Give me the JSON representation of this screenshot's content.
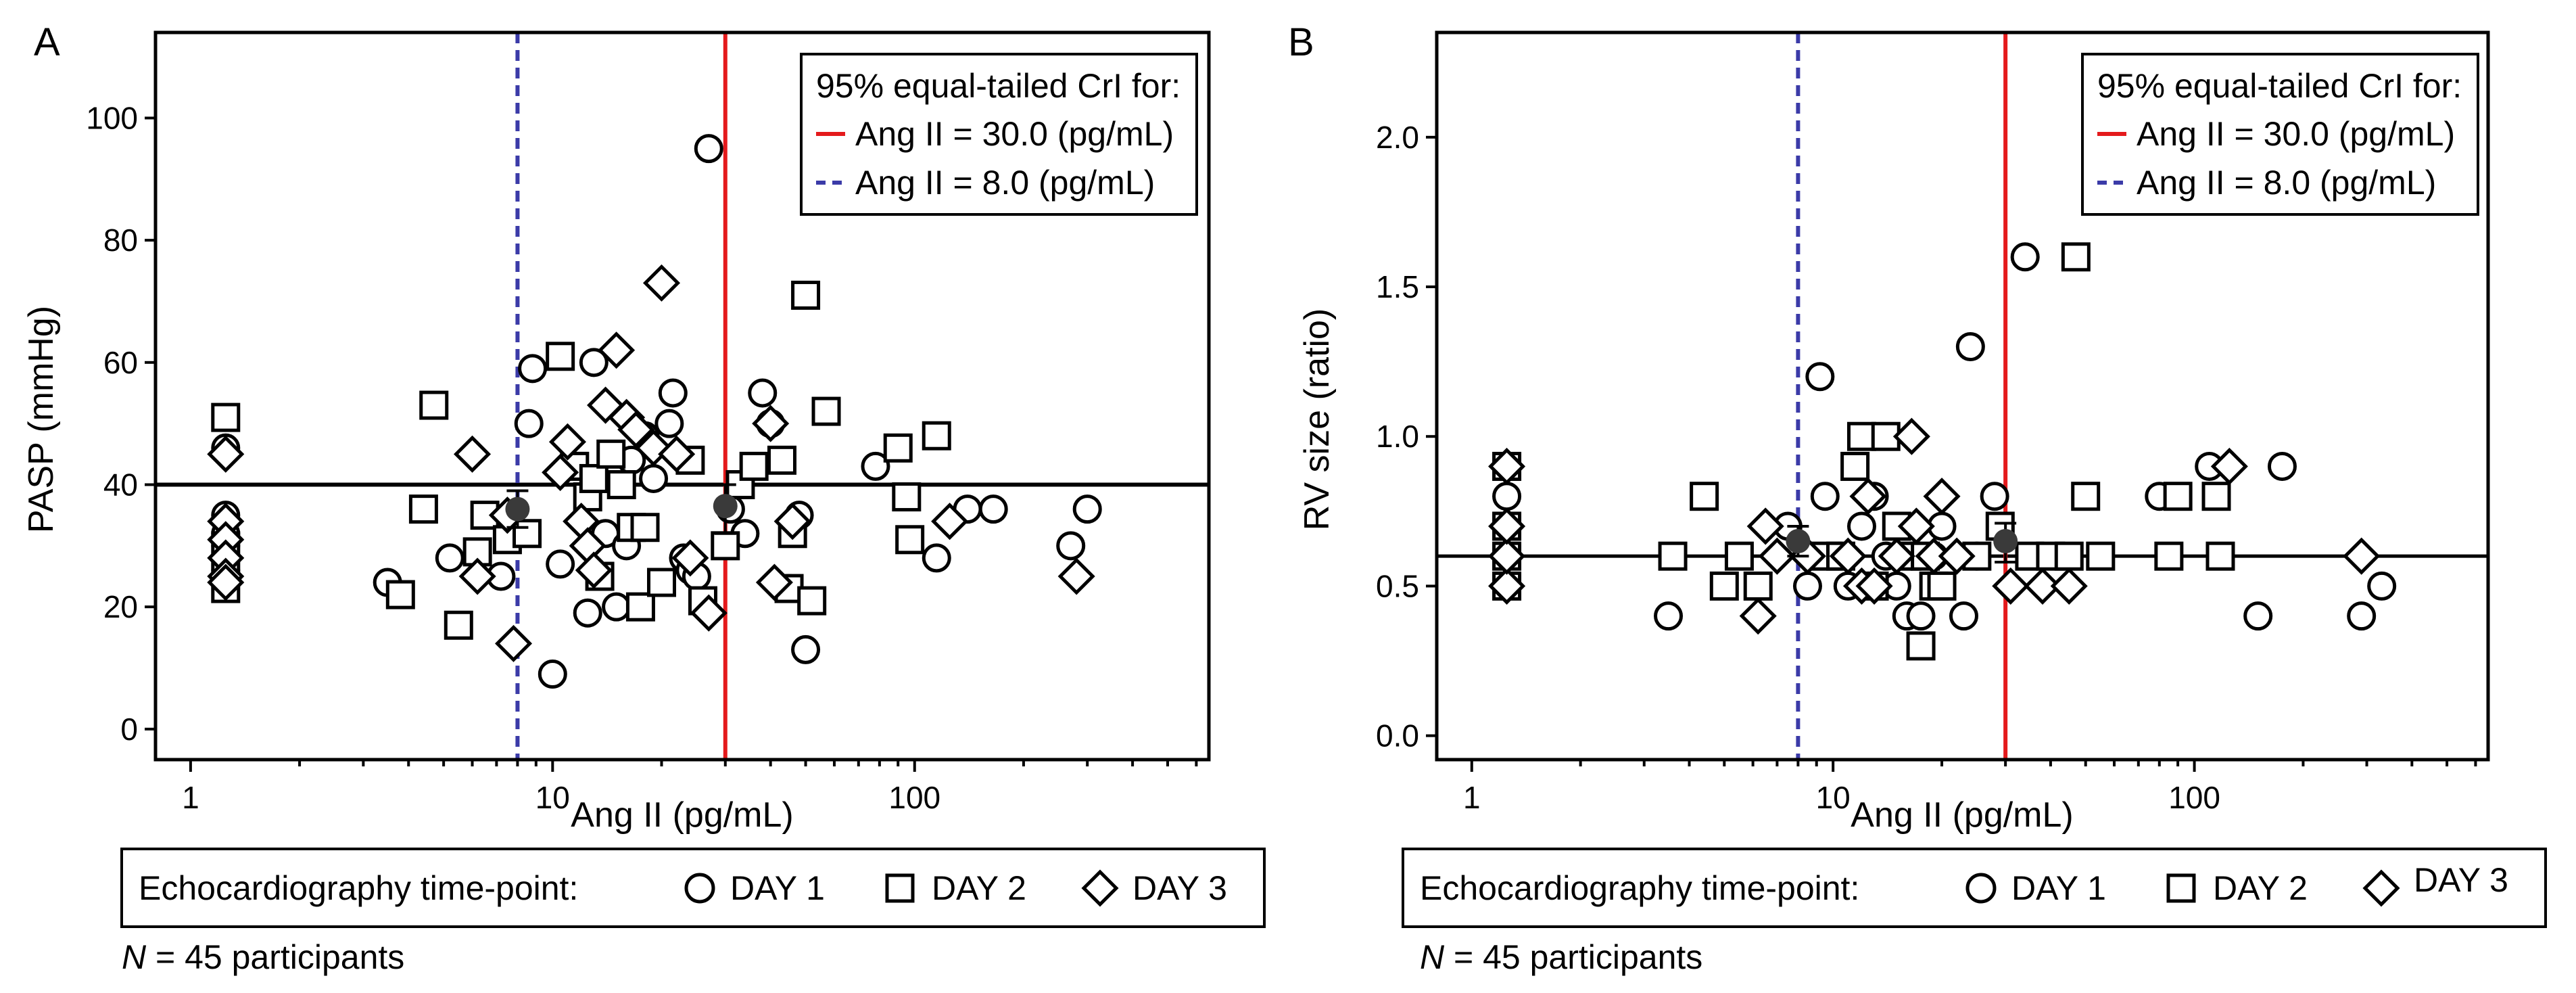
{
  "colors": {
    "crl_30": "#e41a1c",
    "crl_8": "#3b3ba8",
    "marker_stroke": "#000000",
    "estimate_dot": "#3a3a3a"
  },
  "chart_data": [
    {
      "panel": "A",
      "type": "scatter",
      "x_scale": "log",
      "xlabel": "Ang II (pg/mL)",
      "ylabel": "PASP (mmHg)",
      "xlim": [
        0.8,
        650
      ],
      "ylim": [
        -5,
        114
      ],
      "x_ticks": [
        1,
        10,
        100
      ],
      "x_tick_labels": [
        "1",
        "10",
        "100"
      ],
      "y_ticks": [
        0,
        20,
        40,
        60,
        80,
        100
      ],
      "y_tick_labels": [
        "0",
        "20",
        "40",
        "60",
        "80",
        "100"
      ],
      "reference_line_y": 40,
      "vlines": [
        {
          "x": 30,
          "label": "Ang II = 30.0 (pg/mL)",
          "style": "solid",
          "color": "#e41a1c"
        },
        {
          "x": 8,
          "label": "Ang II = 8.0 (pg/mL)",
          "style": "dashed",
          "color": "#3b3ba8"
        }
      ],
      "legend_title": "95% equal-tailed CrI for:",
      "legend_position": "top-right",
      "estimates": [
        {
          "x": 8,
          "y": 36,
          "lo": 33,
          "hi": 39
        },
        {
          "x": 30,
          "y": 36.5,
          "lo": 32,
          "hi": 40
        }
      ],
      "series": [
        {
          "name": "DAY 1",
          "marker": "circle",
          "points": [
            [
              1.25,
              35
            ],
            [
              1.25,
              32
            ],
            [
              1.25,
              30
            ],
            [
              1.25,
              28
            ],
            [
              1.25,
              26
            ],
            [
              1.25,
              46
            ],
            [
              3.5,
              24
            ],
            [
              5.2,
              28
            ],
            [
              7.2,
              25
            ],
            [
              7.5,
              33
            ],
            [
              8.6,
              50
            ],
            [
              8.8,
              59
            ],
            [
              10,
              9
            ],
            [
              10.5,
              27
            ],
            [
              12.5,
              19
            ],
            [
              13,
              60
            ],
            [
              14,
              32
            ],
            [
              15,
              20
            ],
            [
              16,
              30
            ],
            [
              16.5,
              44
            ],
            [
              18,
              48
            ],
            [
              19,
              41
            ],
            [
              21,
              50
            ],
            [
              21.5,
              55
            ],
            [
              23,
              28
            ],
            [
              24,
              26
            ],
            [
              25,
              25
            ],
            [
              27,
              95
            ],
            [
              31,
              36
            ],
            [
              34,
              32
            ],
            [
              38,
              55
            ],
            [
              40,
              50
            ],
            [
              45,
              23
            ],
            [
              48,
              35
            ],
            [
              50,
              13
            ],
            [
              78,
              43
            ],
            [
              115,
              28
            ],
            [
              140,
              36
            ],
            [
              165,
              36
            ],
            [
              270,
              30
            ],
            [
              300,
              36
            ]
          ]
        },
        {
          "name": "DAY 2",
          "marker": "square",
          "points": [
            [
              1.25,
              51
            ],
            [
              1.25,
              30
            ],
            [
              1.25,
              26
            ],
            [
              1.25,
              23
            ],
            [
              3.8,
              22
            ],
            [
              4.4,
              36
            ],
            [
              4.7,
              53
            ],
            [
              5.5,
              17
            ],
            [
              6.2,
              29
            ],
            [
              6.5,
              35
            ],
            [
              7.5,
              31
            ],
            [
              8.5,
              32
            ],
            [
              10.5,
              61
            ],
            [
              11.5,
              43
            ],
            [
              12.5,
              38
            ],
            [
              13,
              41
            ],
            [
              13.5,
              25
            ],
            [
              14.5,
              45
            ],
            [
              15.5,
              40
            ],
            [
              16.5,
              33
            ],
            [
              17.5,
              20
            ],
            [
              18,
              33
            ],
            [
              20,
              24
            ],
            [
              24,
              44
            ],
            [
              26,
              21
            ],
            [
              30,
              30
            ],
            [
              33,
              40
            ],
            [
              36,
              43
            ],
            [
              43,
              44
            ],
            [
              45,
              23
            ],
            [
              46,
              32
            ],
            [
              50,
              71
            ],
            [
              52,
              21
            ],
            [
              57,
              52
            ],
            [
              90,
              46
            ],
            [
              95,
              38
            ],
            [
              97,
              31
            ],
            [
              115,
              48
            ]
          ]
        },
        {
          "name": "DAY 3",
          "marker": "diamond",
          "points": [
            [
              1.25,
              45
            ],
            [
              1.25,
              34
            ],
            [
              1.25,
              31
            ],
            [
              1.25,
              28
            ],
            [
              1.25,
              25
            ],
            [
              1.25,
              24
            ],
            [
              6,
              45
            ],
            [
              6.2,
              25
            ],
            [
              7.5,
              35
            ],
            [
              7.8,
              14
            ],
            [
              10.5,
              42
            ],
            [
              11,
              47
            ],
            [
              12,
              34
            ],
            [
              12.5,
              30
            ],
            [
              13,
              26
            ],
            [
              14,
              53
            ],
            [
              15,
              62
            ],
            [
              16,
              51
            ],
            [
              17,
              49
            ],
            [
              19,
              46
            ],
            [
              20,
              73
            ],
            [
              22,
              45
            ],
            [
              24,
              28
            ],
            [
              27,
              19
            ],
            [
              40,
              50
            ],
            [
              41,
              24
            ],
            [
              46,
              34
            ],
            [
              125,
              34
            ],
            [
              280,
              25
            ]
          ]
        }
      ],
      "legend_box": {
        "title": "Echocardiography time-point:",
        "entries": [
          "DAY 1",
          "DAY 2",
          "DAY 3"
        ]
      },
      "footnote_italic": "N",
      "footnote_rest": " = 45 participants"
    },
    {
      "panel": "B",
      "type": "scatter",
      "x_scale": "log",
      "xlabel": "Ang II (pg/mL)",
      "ylabel": "RV size (ratio)",
      "xlim": [
        0.8,
        650
      ],
      "ylim": [
        -0.08,
        2.35
      ],
      "x_ticks": [
        1,
        10,
        100
      ],
      "x_tick_labels": [
        "1",
        "10",
        "100"
      ],
      "y_ticks": [
        0,
        0.5,
        1.0,
        1.5,
        2.0
      ],
      "y_tick_labels": [
        "0.0",
        "0.5",
        "1.0",
        "1.5",
        "2.0"
      ],
      "reference_line_y": 0.6,
      "vlines": [
        {
          "x": 30,
          "label": "Ang II = 30.0 (pg/mL)",
          "style": "solid",
          "color": "#e41a1c"
        },
        {
          "x": 8,
          "label": "Ang II = 8.0 (pg/mL)",
          "style": "dashed",
          "color": "#3b3ba8"
        }
      ],
      "legend_title": "95% equal-tailed CrI for:",
      "legend_position": "top-right",
      "estimates": [
        {
          "x": 8,
          "y": 0.65,
          "lo": 0.6,
          "hi": 0.7
        },
        {
          "x": 30,
          "y": 0.65,
          "lo": 0.58,
          "hi": 0.71
        }
      ],
      "series": [
        {
          "name": "DAY 1",
          "marker": "circle",
          "points": [
            [
              1.25,
              0.5
            ],
            [
              1.25,
              0.6
            ],
            [
              1.25,
              0.7
            ],
            [
              1.25,
              0.8
            ],
            [
              1.25,
              0.9
            ],
            [
              3.5,
              0.4
            ],
            [
              7.5,
              0.7
            ],
            [
              8.5,
              0.5
            ],
            [
              9.2,
              1.2
            ],
            [
              9.5,
              0.8
            ],
            [
              10.5,
              0.6
            ],
            [
              11,
              0.5
            ],
            [
              12,
              0.7
            ],
            [
              13,
              0.8
            ],
            [
              14,
              0.6
            ],
            [
              15,
              0.5
            ],
            [
              16,
              0.4
            ],
            [
              16.5,
              0.6
            ],
            [
              17.5,
              0.4
            ],
            [
              19,
              0.6
            ],
            [
              20,
              0.7
            ],
            [
              23,
              0.4
            ],
            [
              24,
              1.3
            ],
            [
              25,
              0.6
            ],
            [
              28,
              0.8
            ],
            [
              34,
              1.6
            ],
            [
              80,
              0.8
            ],
            [
              110,
              0.9
            ],
            [
              150,
              0.4
            ],
            [
              175,
              0.9
            ],
            [
              290,
              0.4
            ],
            [
              330,
              0.5
            ]
          ]
        },
        {
          "name": "DAY 2",
          "marker": "square",
          "points": [
            [
              1.25,
              0.5
            ],
            [
              1.25,
              0.6
            ],
            [
              1.25,
              0.7
            ],
            [
              1.25,
              0.9
            ],
            [
              3.6,
              0.6
            ],
            [
              4.4,
              0.8
            ],
            [
              5,
              0.5
            ],
            [
              5.5,
              0.6
            ],
            [
              6.2,
              0.5
            ],
            [
              9.5,
              0.6
            ],
            [
              10.5,
              0.6
            ],
            [
              11.5,
              0.9
            ],
            [
              12,
              1.0
            ],
            [
              13,
              0.5
            ],
            [
              14,
              1.0
            ],
            [
              15,
              0.7
            ],
            [
              16,
              0.6
            ],
            [
              17.5,
              0.3
            ],
            [
              18,
              0.6
            ],
            [
              19,
              0.5
            ],
            [
              20,
              0.5
            ],
            [
              25,
              0.6
            ],
            [
              29,
              0.7
            ],
            [
              35,
              0.6
            ],
            [
              40,
              0.6
            ],
            [
              45,
              0.6
            ],
            [
              47,
              1.6
            ],
            [
              50,
              0.8
            ],
            [
              55,
              0.6
            ],
            [
              85,
              0.6
            ],
            [
              90,
              0.8
            ],
            [
              115,
              0.8
            ],
            [
              118,
              0.6
            ]
          ]
        },
        {
          "name": "DAY 3",
          "marker": "diamond",
          "points": [
            [
              1.25,
              0.5
            ],
            [
              1.25,
              0.6
            ],
            [
              1.25,
              0.7
            ],
            [
              1.25,
              0.9
            ],
            [
              6.2,
              0.4
            ],
            [
              6.5,
              0.7
            ],
            [
              7,
              0.6
            ],
            [
              8.5,
              0.6
            ],
            [
              11,
              0.6
            ],
            [
              12,
              0.5
            ],
            [
              12.5,
              0.8
            ],
            [
              13,
              0.5
            ],
            [
              15,
              0.6
            ],
            [
              16.5,
              1.0
            ],
            [
              17,
              0.7
            ],
            [
              19,
              0.6
            ],
            [
              20,
              0.8
            ],
            [
              22,
              0.6
            ],
            [
              31,
              0.5
            ],
            [
              38,
              0.5
            ],
            [
              45,
              0.5
            ],
            [
              125,
              0.9
            ],
            [
              290,
              0.6
            ]
          ]
        }
      ],
      "legend_box": {
        "title": "Echocardiography time-point:",
        "entries": [
          "DAY 1",
          "DAY 2",
          "DAY 3"
        ]
      },
      "footnote_italic": "N",
      "footnote_rest": " = 45 participants"
    }
  ]
}
